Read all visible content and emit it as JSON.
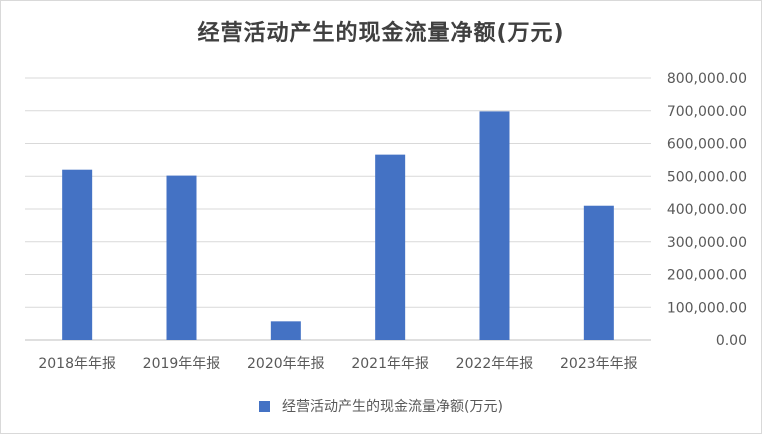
{
  "chart_data": {
    "type": "bar",
    "title": "经营活动产生的现金流量净额(万元)",
    "categories": [
      "2018年年报",
      "2019年年报",
      "2020年年报",
      "2021年年报",
      "2022年年报",
      "2023年年报"
    ],
    "series": [
      {
        "name": "经营活动产生的现金流量净额(万元)",
        "values": [
          520000,
          502000,
          57000,
          566000,
          698000,
          410000
        ],
        "color": "#4472C4"
      }
    ],
    "ylim": [
      0,
      800000
    ],
    "y_ticks": [
      "0.00",
      "100,000.00",
      "200,000.00",
      "300,000.00",
      "400,000.00",
      "500,000.00",
      "600,000.00",
      "700,000.00",
      "800,000.00"
    ],
    "y_axis_side": "right",
    "grid": true,
    "legend_position": "bottom"
  }
}
